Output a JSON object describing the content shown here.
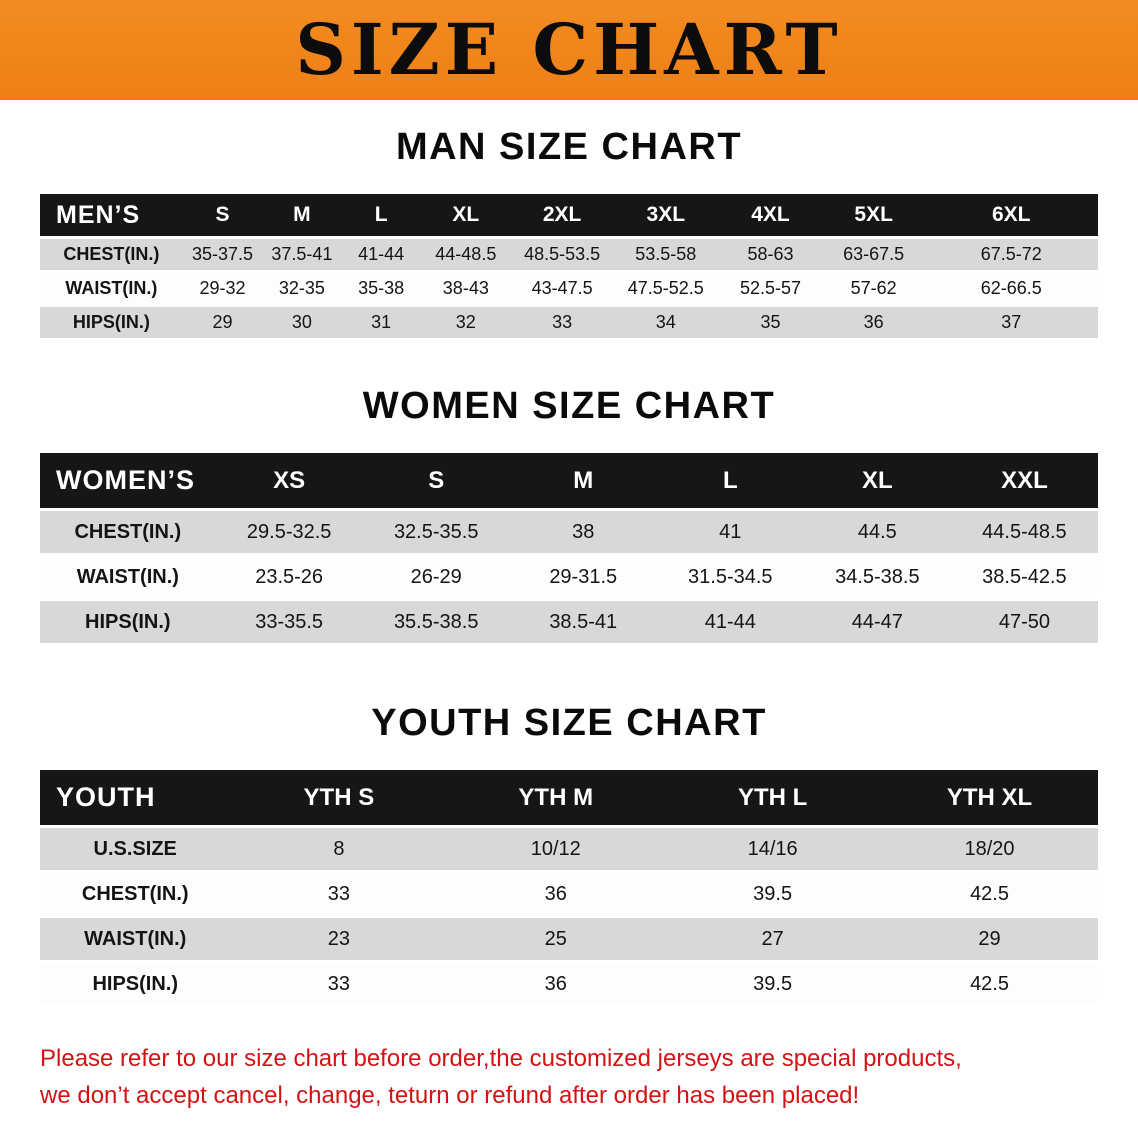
{
  "banner": {
    "title": "SIZE CHART"
  },
  "men": {
    "heading": "MAN SIZE CHART",
    "corner": "MEN’S",
    "cols": [
      "S",
      "M",
      "L",
      "XL",
      "2XL",
      "3XL",
      "4XL",
      "5XL",
      "6XL"
    ],
    "rows": [
      {
        "label": "CHEST(IN.)",
        "v": [
          "35-37.5",
          "37.5-41",
          "41-44",
          "44-48.5",
          "48.5-53.5",
          "53.5-58",
          "58-63",
          "63-67.5",
          "67.5-72"
        ]
      },
      {
        "label": "WAIST(IN.)",
        "v": [
          "29-32",
          "32-35",
          "35-38",
          "38-43",
          "43-47.5",
          "47.5-52.5",
          "52.5-57",
          "57-62",
          "62-66.5"
        ]
      },
      {
        "label": "HIPS(IN.)",
        "v": [
          "29",
          "30",
          "31",
          "32",
          "33",
          "34",
          "35",
          "36",
          "37"
        ]
      }
    ]
  },
  "women": {
    "heading": "WOMEN SIZE CHART",
    "corner": "WOMEN’S",
    "cols": [
      "XS",
      "S",
      "M",
      "L",
      "XL",
      "XXL"
    ],
    "rows": [
      {
        "label": "CHEST(IN.)",
        "v": [
          "29.5-32.5",
          "32.5-35.5",
          "38",
          "41",
          "44.5",
          "44.5-48.5"
        ]
      },
      {
        "label": "WAIST(IN.)",
        "v": [
          "23.5-26",
          "26-29",
          "29-31.5",
          "31.5-34.5",
          "34.5-38.5",
          "38.5-42.5"
        ]
      },
      {
        "label": "HIPS(IN.)",
        "v": [
          "33-35.5",
          "35.5-38.5",
          "38.5-41",
          "41-44",
          "44-47",
          "47-50"
        ]
      }
    ]
  },
  "youth": {
    "heading": "YOUTH SIZE CHART",
    "corner": "YOUTH",
    "cols": [
      "YTH S",
      "YTH M",
      "YTH L",
      "YTH XL"
    ],
    "rows": [
      {
        "label": "U.S.SIZE",
        "v": [
          "8",
          "10/12",
          "14/16",
          "18/20"
        ]
      },
      {
        "label": "CHEST(IN.)",
        "v": [
          "33",
          "36",
          "39.5",
          "42.5"
        ]
      },
      {
        "label": "WAIST(IN.)",
        "v": [
          "23",
          "25",
          "27",
          "29"
        ]
      },
      {
        "label": "HIPS(IN.)",
        "v": [
          "33",
          "36",
          "39.5",
          "42.5"
        ]
      }
    ]
  },
  "footer": {
    "line1": "Please refer to our size chart before order,the customized jerseys are special products,",
    "line2": "we don’t accept cancel, change, teturn or refund after order has been placed!"
  },
  "colors": {
    "banner_bg": "#f0851c",
    "header_bg": "#161616",
    "stripe_gray": "#d8d8d8",
    "row_white": "#fdfdfd",
    "footer_red": "#d31313",
    "heading_black": "#0a0a0a"
  }
}
